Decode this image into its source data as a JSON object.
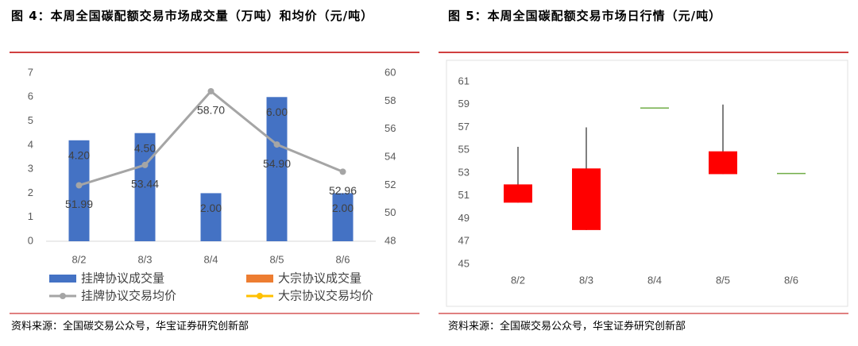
{
  "chart_data": [
    {
      "type": "bar-line",
      "title": "图 4：本周全国碳配额交易市场成交量（万吨）和均价（元/吨）",
      "source": "资料来源：全国碳交易公众号，华宝证券研究创新部",
      "categories": [
        "8/2",
        "8/3",
        "8/4",
        "8/5",
        "8/6"
      ],
      "ylim": [
        0,
        7
      ],
      "yticks": [
        0,
        1,
        2,
        3,
        4,
        5,
        6,
        7
      ],
      "y2lim": [
        48,
        60
      ],
      "y2ticks": [
        48,
        50,
        52,
        54,
        56,
        58,
        60
      ],
      "series": [
        {
          "name": "挂牌协议成交量",
          "kind": "bar",
          "color": "#4472c4",
          "values": [
            4.2,
            4.5,
            2.0,
            6.0,
            2.0
          ],
          "value_labels": [
            "4.20",
            "4.50",
            "2.00",
            "6.00",
            "2.00"
          ]
        },
        {
          "name": "大宗协议成交量",
          "kind": "bar",
          "color": "#ed7d31",
          "values": [
            null,
            null,
            null,
            null,
            null
          ]
        },
        {
          "name": "挂牌协议交易均价",
          "kind": "line",
          "axis": "y2",
          "color": "#a5a5a5",
          "values": [
            51.99,
            53.44,
            58.7,
            54.9,
            52.96
          ],
          "value_labels": [
            "51.99",
            "53.44",
            "58.70",
            "54.90",
            "52.96"
          ]
        },
        {
          "name": "大宗协议交易均价",
          "kind": "line",
          "axis": "y2",
          "color": "#ffc000",
          "values": [
            null,
            null,
            null,
            null,
            null
          ]
        }
      ]
    },
    {
      "type": "candlestick",
      "title": "图 5：本周全国碳配额交易市场日行情（元/吨）",
      "source": "资料来源：全国碳交易公众号，华宝证券研究创新部",
      "categories": [
        "8/2",
        "8/3",
        "8/4",
        "8/5",
        "8/6"
      ],
      "ylim": [
        45,
        61
      ],
      "yticks": [
        45,
        47,
        49,
        51,
        53,
        55,
        57,
        59,
        61
      ],
      "open": [
        50.4,
        48.0,
        58.7,
        52.9,
        52.96
      ],
      "high": [
        55.3,
        57.0,
        58.7,
        59.0,
        52.96
      ],
      "low": [
        50.4,
        48.0,
        58.7,
        52.9,
        52.96
      ],
      "close": [
        52.0,
        53.4,
        58.7,
        54.9,
        52.96
      ],
      "up_color": "#ff0000",
      "flat_color": "#70ad47"
    }
  ]
}
